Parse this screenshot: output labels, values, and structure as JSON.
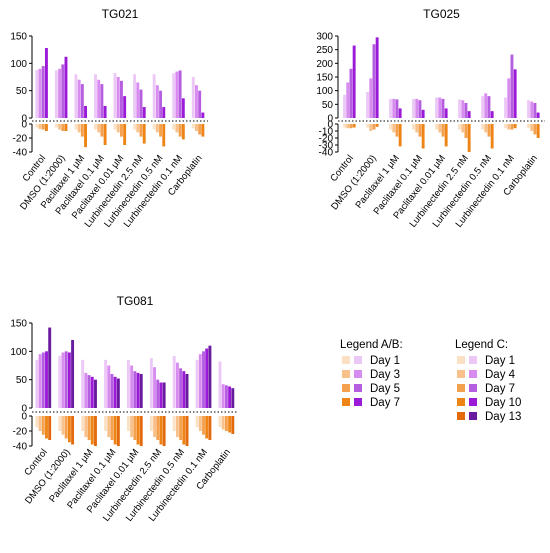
{
  "colors": {
    "purple": [
      "#ecc8f7",
      "#d88cf0",
      "#b65ee0",
      "#9a1ad8",
      "#6a1a9e"
    ],
    "orange": [
      "#fbe1c4",
      "#f8c08a",
      "#f3a04f",
      "#ef8416",
      "#e36b0e"
    ]
  },
  "legend_ab": {
    "title": "Legend A/B:",
    "items": [
      "Day 1",
      "Day 3",
      "Day 5",
      "Day 7"
    ]
  },
  "legend_c": {
    "title": "Legend C:",
    "items": [
      "Day 1",
      "Day 4",
      "Day 7",
      "Day 10",
      "Day 13"
    ]
  },
  "chart_data": [
    {
      "type": "bar",
      "title": "TG021",
      "categories": [
        "Control",
        "DMSO (1:2000)",
        "Paclitaxel 1 μM",
        "Paclitaxel 0.1 μM",
        "Paclitaxel 0.01 μM",
        "Lurbinectedin 2.5 nM",
        "Lurbinectedin 0.5 nM",
        "Lurbinectedin 0.1 nM",
        "Carboplatin"
      ],
      "upper": {
        "ylim": [
          0,
          150
        ],
        "ticks": [
          0,
          50,
          100,
          150
        ],
        "series": [
          {
            "name": "Day 1",
            "values": [
              88,
              87,
              80,
              80,
              82,
              80,
              80,
              82,
              75
            ]
          },
          {
            "name": "Day 3",
            "values": [
              90,
              90,
              70,
              70,
              75,
              65,
              60,
              85,
              60
            ]
          },
          {
            "name": "Day 5",
            "values": [
              95,
              98,
              62,
              62,
              68,
              52,
              50,
              87,
              50
            ]
          },
          {
            "name": "Day 7",
            "values": [
              128,
              112,
              22,
              22,
              40,
              20,
              20,
              36,
              10
            ]
          }
        ]
      },
      "lower": {
        "ylim": [
          -40,
          0
        ],
        "ticks": [
          -40,
          -20,
          0
        ],
        "series": [
          {
            "name": "Day 1",
            "values": [
              -5,
              -5,
              -8,
              -8,
              -8,
              -8,
              -8,
              -8,
              -6
            ]
          },
          {
            "name": "Day 3",
            "values": [
              -7,
              -8,
              -12,
              -12,
              -12,
              -12,
              -12,
              -12,
              -10
            ]
          },
          {
            "name": "Day 5",
            "values": [
              -8,
              -10,
              -18,
              -18,
              -18,
              -18,
              -18,
              -18,
              -15
            ]
          },
          {
            "name": "Day 7",
            "values": [
              -10,
              -10,
              -33,
              -30,
              -30,
              -28,
              -32,
              -22,
              -18
            ]
          }
        ]
      }
    },
    {
      "type": "bar",
      "title": "TG025",
      "categories": [
        "Control",
        "DMSO (1:2000)",
        "Paclitaxel 1 μM",
        "Paclitaxel 0.1 μM",
        "Paclitaxel 0.01 μM",
        "Lurbinectedin 2.5 nM",
        "Lurbinectedin 0.5 nM",
        "Lurbinectedin 0.1 nM",
        "Carboplatin"
      ],
      "upper": {
        "ylim": [
          0,
          300
        ],
        "ticks": [
          0,
          50,
          100,
          150,
          200,
          250,
          300
        ],
        "series": [
          {
            "name": "Day 1",
            "values": [
              85,
              95,
              70,
              70,
              75,
              68,
              80,
              75,
              65
            ]
          },
          {
            "name": "Day 3",
            "values": [
              130,
              145,
              70,
              70,
              75,
              65,
              90,
              145,
              60
            ]
          },
          {
            "name": "Day 5",
            "values": [
              180,
              270,
              68,
              65,
              70,
              55,
              80,
              232,
              55
            ]
          },
          {
            "name": "Day 7",
            "values": [
              265,
              295,
              35,
              30,
              35,
              25,
              25,
              178,
              20
            ]
          }
        ]
      },
      "lower": {
        "ylim": [
          -40,
          0
        ],
        "ticks": [
          -40,
          -30,
          -20,
          -10,
          0
        ],
        "series": [
          {
            "name": "Day 1",
            "values": [
              -5,
              -5,
              -8,
              -8,
              -8,
              -8,
              -8,
              -6,
              -6
            ]
          },
          {
            "name": "Day 3",
            "values": [
              -6,
              -10,
              -12,
              -12,
              -12,
              -12,
              -12,
              -8,
              -10
            ]
          },
          {
            "name": "Day 5",
            "values": [
              -6,
              -8,
              -18,
              -18,
              -18,
              -20,
              -18,
              -8,
              -15
            ]
          },
          {
            "name": "Day 7",
            "values": [
              -5,
              -4,
              -32,
              -35,
              -32,
              -40,
              -35,
              -6,
              -20
            ]
          }
        ]
      }
    },
    {
      "type": "bar",
      "title": "TG081",
      "categories": [
        "Control",
        "DMSO (1:2000)",
        "Paclitaxel 1 μM",
        "Paclitaxel 0.1 μM",
        "Paclitaxel 0.01 μM",
        "Lurbinectedin 2.5 nM",
        "Lurbinectedin 0.5 nM",
        "Lurbinectedin 0.1 nM",
        "Carboplatin"
      ],
      "upper": {
        "ylim": [
          0,
          150
        ],
        "ticks": [
          0,
          50,
          100,
          150
        ],
        "series": [
          {
            "name": "Day 1",
            "values": [
              85,
              92,
              85,
              85,
              85,
              88,
              92,
              85,
              82
            ]
          },
          {
            "name": "Day 4",
            "values": [
              95,
              98,
              62,
              75,
              75,
              72,
              80,
              95,
              42
            ]
          },
          {
            "name": "Day 7",
            "values": [
              98,
              100,
              58,
              60,
              65,
              50,
              70,
              100,
              40
            ]
          },
          {
            "name": "Day 10",
            "values": [
              100,
              98,
              55,
              55,
              62,
              45,
              65,
              105,
              38
            ]
          },
          {
            "name": "Day 13",
            "values": [
              142,
              120,
              50,
              52,
              60,
              45,
              60,
              110,
              35
            ]
          }
        ]
      },
      "lower": {
        "ylim": [
          -40,
          0
        ],
        "ticks": [
          -40,
          -20,
          0
        ],
        "series": [
          {
            "name": "Day 1",
            "values": [
              -15,
              -20,
              -20,
              -20,
              -20,
              -20,
              -20,
              -15,
              -15
            ]
          },
          {
            "name": "Day 4",
            "values": [
              -20,
              -25,
              -28,
              -28,
              -28,
              -28,
              -28,
              -20,
              -18
            ]
          },
          {
            "name": "Day 7",
            "values": [
              -25,
              -30,
              -32,
              -32,
              -32,
              -32,
              -32,
              -25,
              -20
            ]
          },
          {
            "name": "Day 10",
            "values": [
              -30,
              -35,
              -38,
              -38,
              -38,
              -38,
              -38,
              -30,
              -22
            ]
          },
          {
            "name": "Day 13",
            "values": [
              -32,
              -38,
              -40,
              -40,
              -40,
              -40,
              -40,
              -32,
              -24
            ]
          }
        ]
      }
    }
  ]
}
